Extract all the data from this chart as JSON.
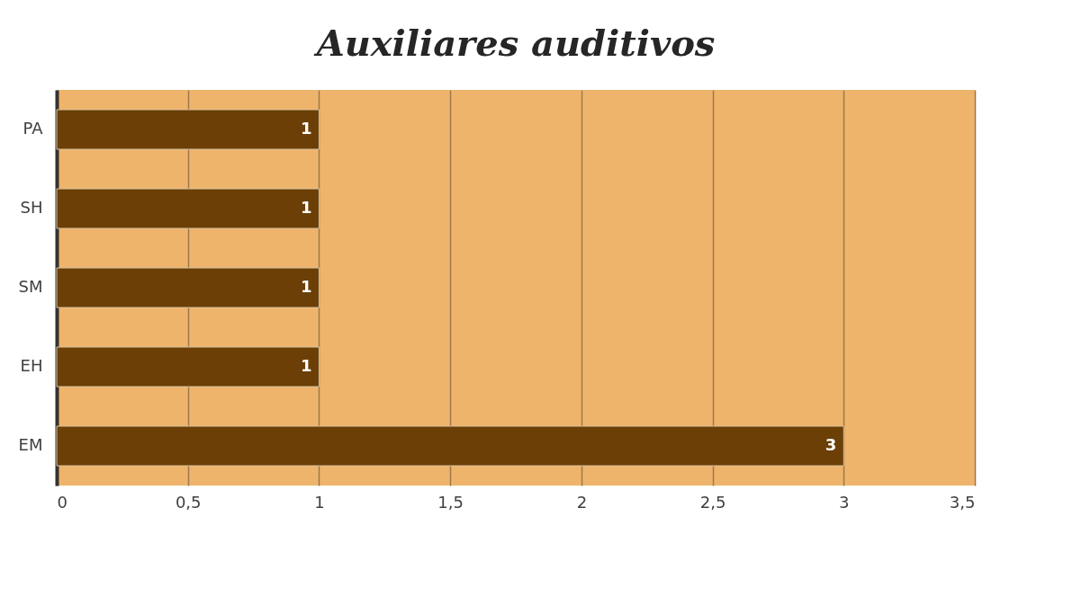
{
  "chart_data": {
    "type": "bar",
    "orientation": "horizontal",
    "title": "Auxiliares auditivos",
    "categories": [
      "PA",
      "SH",
      "SM",
      "EH",
      "EM"
    ],
    "values": [
      1,
      1,
      1,
      1,
      3
    ],
    "color": "#6b3f06",
    "xlim": [
      0,
      3.5
    ],
    "xticks": [
      0,
      {
        "value": 0.5,
        "label": "0,5"
      },
      1,
      {
        "value": 1.5,
        "label": "1,5"
      },
      2,
      {
        "value": 2.5,
        "label": "2,5"
      },
      3,
      {
        "value": 3.5,
        "label": "3,5"
      }
    ],
    "grid": "x",
    "data_labels": true
  }
}
